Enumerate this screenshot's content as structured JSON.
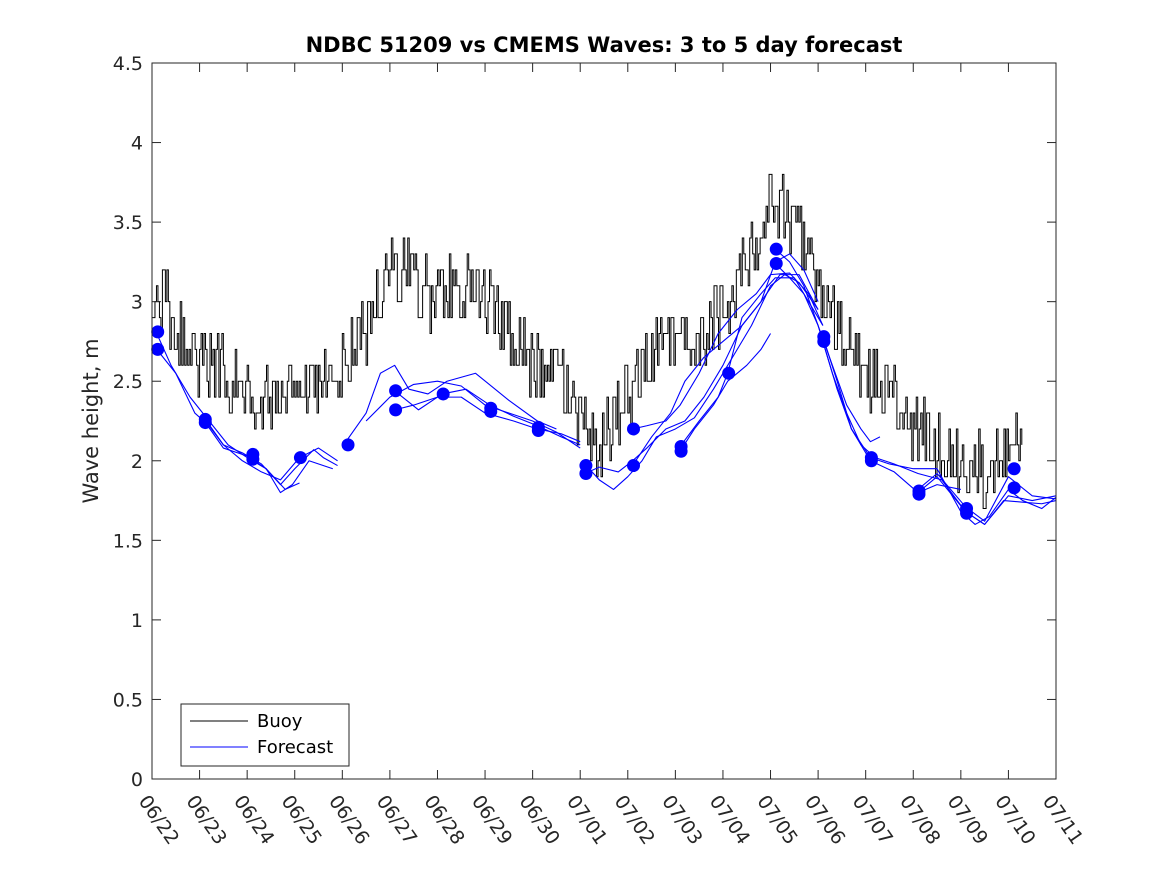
{
  "chart_data": {
    "type": "line",
    "title": "NDBC 51209 vs CMEMS Waves: 3 to 5 day forecast",
    "xlabel": "",
    "ylabel": "Wave height, m",
    "ylim": [
      0,
      4.5
    ],
    "yticks": [
      "0",
      "0.5",
      "1",
      "1.5",
      "2",
      "2.5",
      "3",
      "3.5",
      "4",
      "4.5"
    ],
    "xlim": [
      0,
      19
    ],
    "xticks": [
      "06/22",
      "06/23",
      "06/24",
      "06/25",
      "06/26",
      "06/27",
      "06/28",
      "06/29",
      "06/30",
      "07/01",
      "07/02",
      "07/03",
      "07/04",
      "07/05",
      "07/06",
      "07/07",
      "07/08",
      "07/09",
      "07/10",
      "07/11"
    ],
    "grid": false,
    "legend": {
      "position": "bottom-left",
      "entries": [
        {
          "label": "Buoy",
          "color": "#000000"
        },
        {
          "label": "Forecast",
          "color": "#0000ff"
        }
      ]
    },
    "buoy_series": {
      "name": "Buoy",
      "color": "#000000",
      "anchors_x": [
        0.0,
        0.2,
        0.5,
        1.0,
        1.5,
        2.0,
        2.5,
        3.0,
        3.5,
        4.0,
        4.3,
        4.6,
        5.0,
        5.3,
        5.6,
        6.0,
        6.5,
        7.0,
        7.5,
        8.0,
        8.5,
        9.0,
        9.4,
        9.8,
        10.2,
        10.6,
        11.0,
        11.5,
        12.0,
        12.5,
        13.0,
        13.4,
        13.8,
        14.2,
        14.6,
        15.0,
        15.5,
        16.0,
        16.5,
        17.0,
        17.5,
        17.8,
        18.0,
        18.3
      ],
      "anchors_y": [
        2.95,
        3.05,
        2.8,
        2.65,
        2.55,
        2.4,
        2.35,
        2.35,
        2.45,
        2.6,
        2.75,
        2.85,
        3.25,
        3.2,
        3.05,
        3.05,
        3.1,
        3.0,
        2.8,
        2.6,
        2.55,
        2.25,
        2.1,
        2.3,
        2.55,
        2.7,
        2.75,
        2.7,
        2.95,
        3.3,
        3.6,
        3.55,
        3.3,
        2.95,
        2.7,
        2.55,
        2.45,
        2.2,
        2.1,
        1.95,
        1.95,
        2.1,
        2.15,
        2.2
      ],
      "noise_amplitude": 0.22,
      "sample_step": 0.03125
    },
    "forecast_series": [
      {
        "name": "Forecast",
        "x": [
          0.1,
          0.4,
          0.8,
          1.2,
          1.6,
          2.0,
          2.4,
          2.8,
          3.1
        ],
        "y": [
          2.8,
          2.6,
          2.4,
          2.25,
          2.1,
          2.02,
          1.95,
          1.82,
          1.86
        ]
      },
      {
        "name": "Forecast",
        "x": [
          0.1,
          0.5,
          0.9,
          1.2,
          1.5,
          1.9,
          2.3,
          2.7,
          3.0,
          3.4,
          3.6,
          3.9
        ],
        "y": [
          2.7,
          2.55,
          2.3,
          2.22,
          2.1,
          2.05,
          1.98,
          1.85,
          1.95,
          2.07,
          2.02,
          1.97
        ]
      },
      {
        "name": "Forecast",
        "x": [
          1.1,
          1.5,
          1.9,
          2.3,
          2.7,
          3.1,
          3.5,
          3.9
        ],
        "y": [
          2.27,
          2.1,
          2.0,
          1.93,
          1.88,
          2.02,
          2.08,
          2.0
        ]
      },
      {
        "name": "Forecast",
        "x": [
          1.1,
          1.5,
          2.0,
          2.4,
          2.7,
          2.95,
          3.3,
          3.8
        ],
        "y": [
          2.25,
          2.08,
          2.03,
          1.95,
          1.8,
          1.85,
          2.0,
          1.95
        ]
      },
      {
        "name": "Forecast",
        "x": [
          4.1,
          4.5,
          4.8,
          5.1,
          5.4,
          5.8,
          6.2,
          6.8,
          7.5,
          8.1,
          8.5
        ],
        "y": [
          2.13,
          2.3,
          2.55,
          2.6,
          2.45,
          2.42,
          2.5,
          2.55,
          2.38,
          2.25,
          2.2
        ]
      },
      {
        "name": "Forecast",
        "x": [
          5.1,
          5.6,
          6.1,
          6.6,
          7.1,
          7.6,
          8.1,
          8.6,
          9.0
        ],
        "y": [
          2.44,
          2.32,
          2.42,
          2.45,
          2.35,
          2.28,
          2.22,
          2.15,
          2.1
        ]
      },
      {
        "name": "Forecast",
        "x": [
          5.1,
          5.5,
          6.0,
          6.5,
          7.0,
          7.6,
          8.1,
          8.6,
          9.0
        ],
        "y": [
          2.32,
          2.35,
          2.4,
          2.4,
          2.3,
          2.25,
          2.2,
          2.17,
          2.12
        ]
      },
      {
        "name": "Forecast",
        "x": [
          4.5,
          5.0,
          5.5,
          6.0,
          6.5,
          7.0,
          7.5,
          8.0,
          8.5,
          9.0
        ],
        "y": [
          2.25,
          2.4,
          2.48,
          2.5,
          2.47,
          2.35,
          2.3,
          2.25,
          2.18,
          2.08
        ]
      },
      {
        "name": "Forecast",
        "x": [
          9.1,
          9.4,
          9.7,
          10.0,
          10.3,
          10.6,
          11.0,
          11.4,
          11.8,
          12.2,
          12.6,
          13.0,
          13.3,
          13.6,
          14.0
        ],
        "y": [
          1.98,
          1.88,
          1.82,
          1.9,
          2.0,
          2.15,
          2.2,
          2.27,
          2.45,
          2.65,
          2.85,
          3.1,
          3.17,
          3.12,
          2.95
        ]
      },
      {
        "name": "Forecast",
        "x": [
          9.1,
          9.4,
          9.8,
          10.1,
          10.4,
          10.8,
          11.2,
          11.6,
          12.0,
          12.4,
          12.8,
          13.2,
          13.6,
          14.0
        ],
        "y": [
          1.92,
          1.96,
          1.93,
          2.0,
          2.08,
          2.2,
          2.25,
          2.4,
          2.6,
          2.85,
          3.0,
          3.17,
          3.17,
          2.95
        ]
      },
      {
        "name": "Forecast",
        "x": [
          10.1,
          10.4,
          10.8,
          11.1,
          11.5,
          11.9,
          12.3,
          12.7,
          13.0,
          13.4,
          13.8,
          14.1
        ],
        "y": [
          2.2,
          2.22,
          2.25,
          2.35,
          2.55,
          2.8,
          2.95,
          3.05,
          3.17,
          3.18,
          3.05,
          2.85
        ]
      },
      {
        "name": "Forecast",
        "x": [
          10.1,
          10.5,
          10.9,
          11.2,
          11.6,
          12.0,
          12.4,
          12.8,
          13.1,
          13.4,
          13.7,
          14.0
        ],
        "y": [
          1.97,
          2.15,
          2.3,
          2.5,
          2.65,
          2.75,
          2.85,
          3.0,
          3.25,
          3.3,
          3.2,
          3.0
        ]
      },
      {
        "name": "Forecast",
        "x": [
          11.1,
          11.4,
          11.8,
          12.1,
          12.5,
          12.8,
          13.0
        ],
        "y": [
          2.06,
          2.2,
          2.35,
          2.5,
          2.6,
          2.7,
          2.8
        ]
      },
      {
        "name": "Forecast",
        "x": [
          11.1,
          11.5,
          11.9,
          12.1,
          12.4,
          12.8,
          13.1,
          13.5,
          13.8,
          14.1
        ],
        "y": [
          2.09,
          2.25,
          2.4,
          2.55,
          2.9,
          3.05,
          3.15,
          3.15,
          3.0,
          2.85
        ]
      },
      {
        "name": "Forecast",
        "x": [
          13.1,
          13.4,
          13.7,
          14.0,
          14.3,
          14.6,
          14.9,
          15.1,
          15.3
        ],
        "y": [
          3.33,
          3.25,
          3.1,
          2.85,
          2.6,
          2.35,
          2.2,
          2.12,
          2.15
        ]
      },
      {
        "name": "Forecast",
        "x": [
          13.1,
          13.4,
          13.7,
          14.0,
          14.3,
          14.6,
          14.9,
          15.2,
          15.6,
          16.1,
          16.6,
          17.1,
          17.5,
          17.9,
          18.3,
          18.7,
          19.0
        ],
        "y": [
          3.24,
          3.15,
          3.05,
          2.85,
          2.55,
          2.3,
          2.1,
          2.02,
          1.98,
          1.92,
          1.88,
          1.68,
          1.6,
          1.75,
          1.74,
          1.73,
          1.75
        ]
      },
      {
        "name": "Forecast",
        "x": [
          14.1,
          14.4,
          14.7,
          15.1,
          15.5,
          16.0,
          16.5,
          17.0,
          17.3,
          17.6,
          18.0,
          18.3,
          18.7,
          19.0
        ],
        "y": [
          2.78,
          2.5,
          2.2,
          2.02,
          1.98,
          1.95,
          1.95,
          1.68,
          1.6,
          1.65,
          1.82,
          1.75,
          1.7,
          1.77
        ]
      },
      {
        "name": "Forecast",
        "x": [
          14.1,
          14.4,
          14.7,
          15.1,
          15.6,
          16.1,
          16.5,
          17.0
        ],
        "y": [
          2.75,
          2.45,
          2.2,
          2.0,
          1.93,
          1.8,
          1.85,
          1.82
        ]
      },
      {
        "name": "Forecast",
        "x": [
          16.1,
          16.5,
          17.1,
          17.5,
          18.0,
          18.5,
          19.0
        ],
        "y": [
          1.8,
          1.9,
          1.68,
          1.6,
          1.78,
          1.75,
          1.78
        ]
      },
      {
        "name": "Forecast",
        "x": [
          16.1,
          16.5,
          17.1,
          17.5,
          18.0,
          18.5,
          19.0
        ],
        "y": [
          1.82,
          1.92,
          1.71,
          1.62,
          1.9,
          1.78,
          1.76
        ]
      }
    ],
    "forecast_markers": {
      "name": "Forecast",
      "color": "#0000ff",
      "points": [
        {
          "x": 0.12,
          "y": 2.81
        },
        {
          "x": 0.12,
          "y": 2.7
        },
        {
          "x": 1.12,
          "y": 2.26
        },
        {
          "x": 1.12,
          "y": 2.24
        },
        {
          "x": 2.12,
          "y": 2.04
        },
        {
          "x": 2.12,
          "y": 2.01
        },
        {
          "x": 3.12,
          "y": 2.02
        },
        {
          "x": 4.12,
          "y": 2.1
        },
        {
          "x": 5.12,
          "y": 2.44
        },
        {
          "x": 5.12,
          "y": 2.32
        },
        {
          "x": 6.12,
          "y": 2.42
        },
        {
          "x": 7.12,
          "y": 2.33
        },
        {
          "x": 7.12,
          "y": 2.31
        },
        {
          "x": 8.12,
          "y": 2.21
        },
        {
          "x": 8.12,
          "y": 2.19
        },
        {
          "x": 9.12,
          "y": 1.97
        },
        {
          "x": 9.12,
          "y": 1.92
        },
        {
          "x": 10.12,
          "y": 2.2
        },
        {
          "x": 10.12,
          "y": 1.97
        },
        {
          "x": 11.12,
          "y": 2.09
        },
        {
          "x": 11.12,
          "y": 2.06
        },
        {
          "x": 12.12,
          "y": 2.55
        },
        {
          "x": 13.12,
          "y": 3.33
        },
        {
          "x": 13.12,
          "y": 3.24
        },
        {
          "x": 14.12,
          "y": 2.78
        },
        {
          "x": 14.12,
          "y": 2.75
        },
        {
          "x": 15.12,
          "y": 2.02
        },
        {
          "x": 15.12,
          "y": 2.0
        },
        {
          "x": 16.12,
          "y": 1.81
        },
        {
          "x": 16.12,
          "y": 1.79
        },
        {
          "x": 17.12,
          "y": 1.7
        },
        {
          "x": 17.12,
          "y": 1.67
        },
        {
          "x": 18.12,
          "y": 1.95
        },
        {
          "x": 18.12,
          "y": 1.83
        }
      ]
    }
  }
}
